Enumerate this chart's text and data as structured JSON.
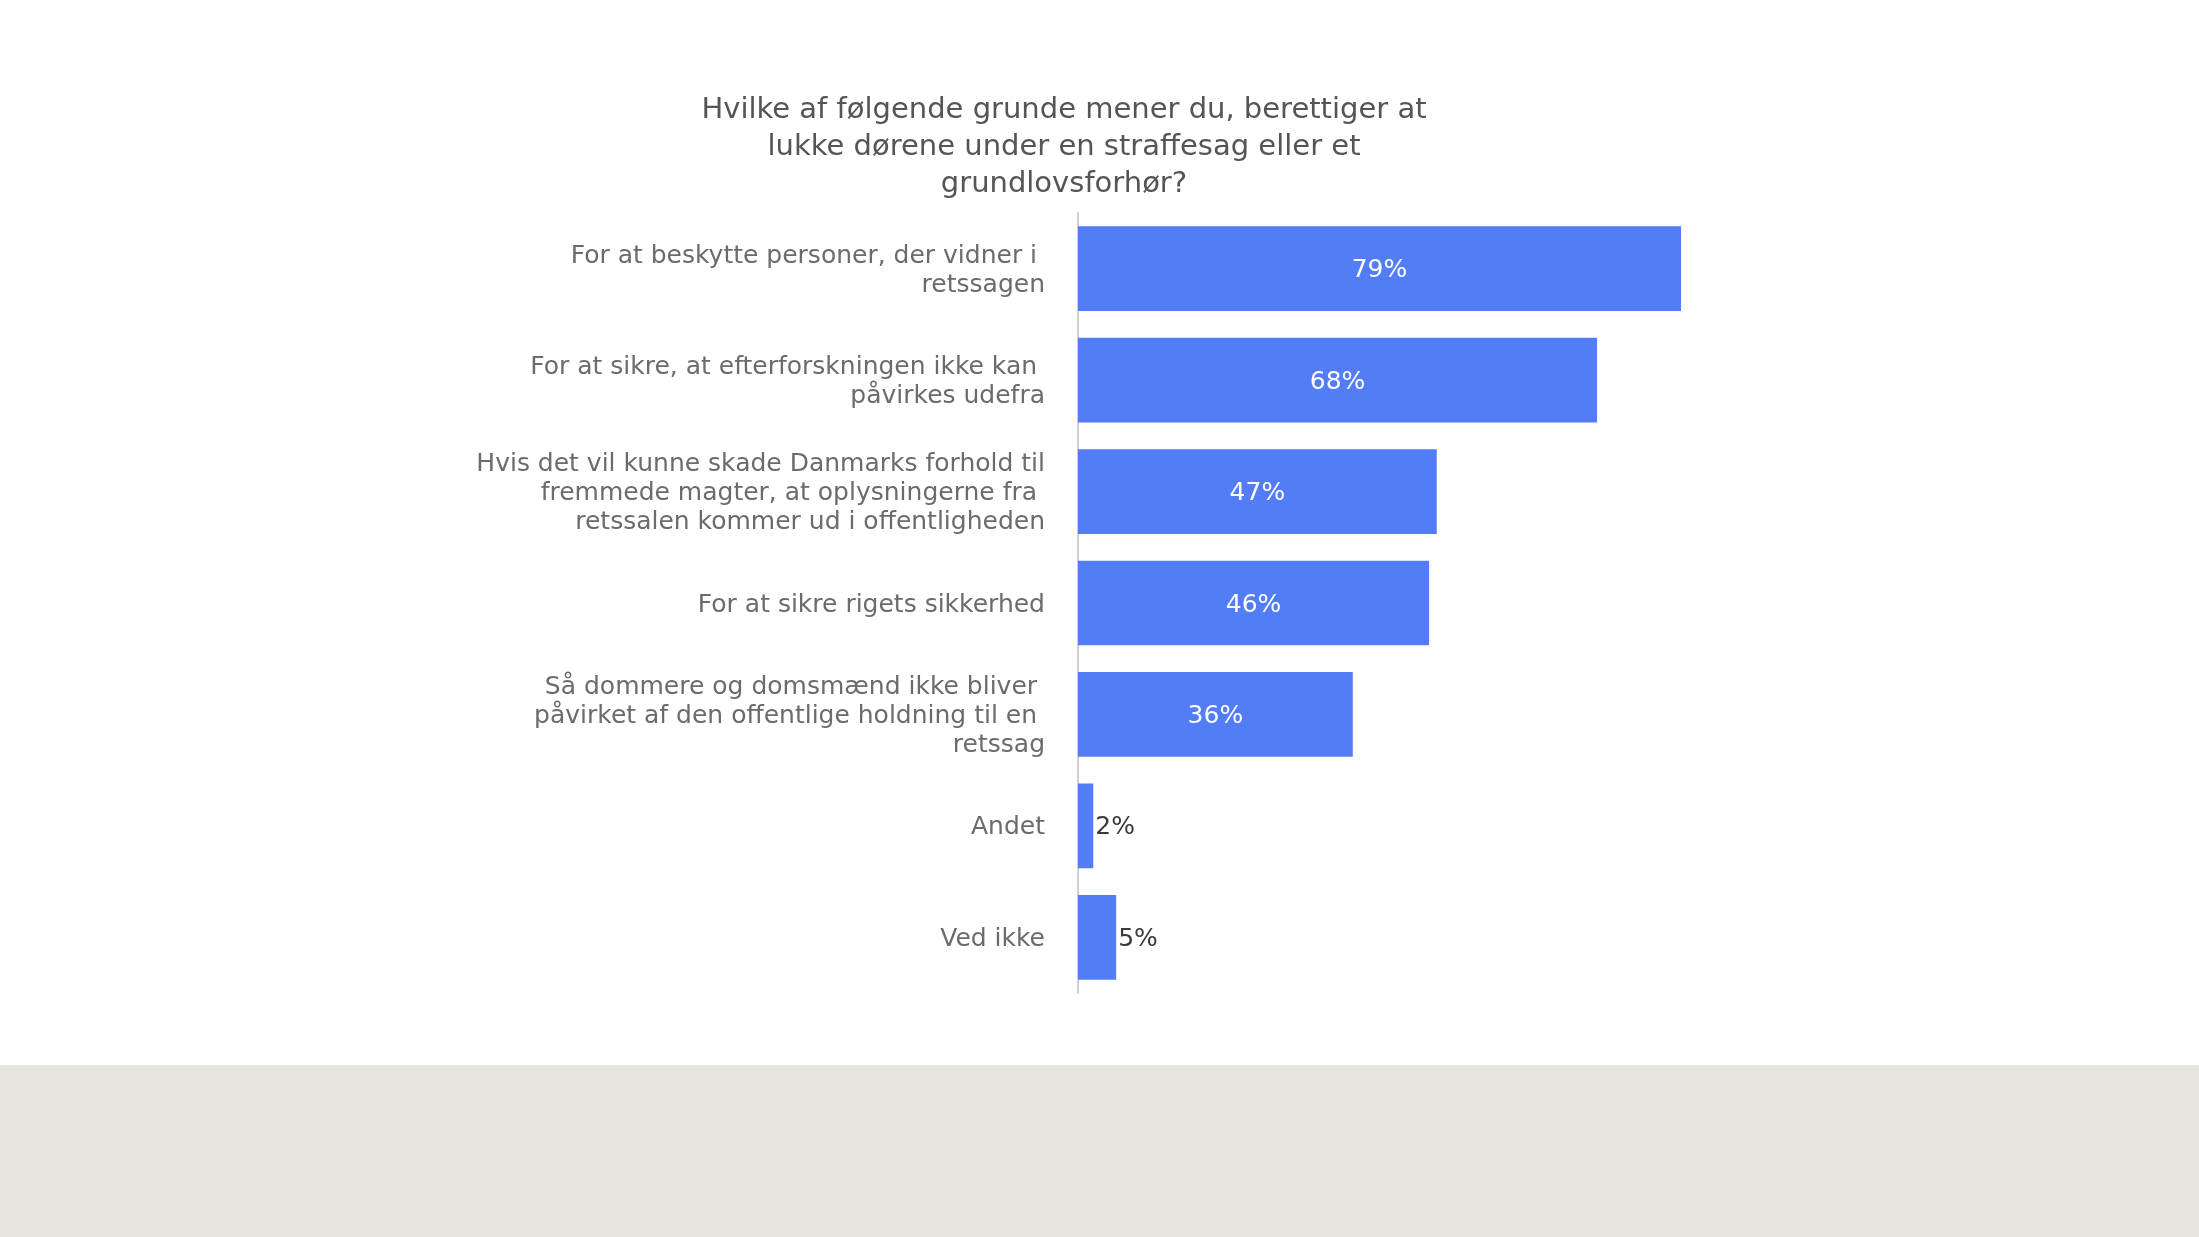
{
  "chart_data": {
    "type": "bar",
    "orientation": "horizontal",
    "title": "Hvilke af følgende grunde mener du, berettiger at lukke dørene under en straffesag eller et grundlovsforhør?",
    "categories": [
      "For at beskytte personer, der vidner i retssagen",
      "For at sikre, at efterforskningen ikke kan påvirkes udefra",
      "Hvis det vil kunne skade Danmarks forhold til fremmede magter, at oplysningerne fra retssalen kommer ud i offentligheden",
      "For at sikre rigets sikkerhed",
      "Så dommere og domsmænd ikke bliver påvirket af den offentlige holdning til en retssag",
      "Andet",
      "Ved ikke"
    ],
    "values": [
      79,
      68,
      47,
      46,
      36,
      2,
      5
    ],
    "value_labels": [
      "79%",
      "68%",
      "47%",
      "46%",
      "36%",
      "2%",
      "5%"
    ],
    "color": "#527df6",
    "tick_labels": "y"
  }
}
